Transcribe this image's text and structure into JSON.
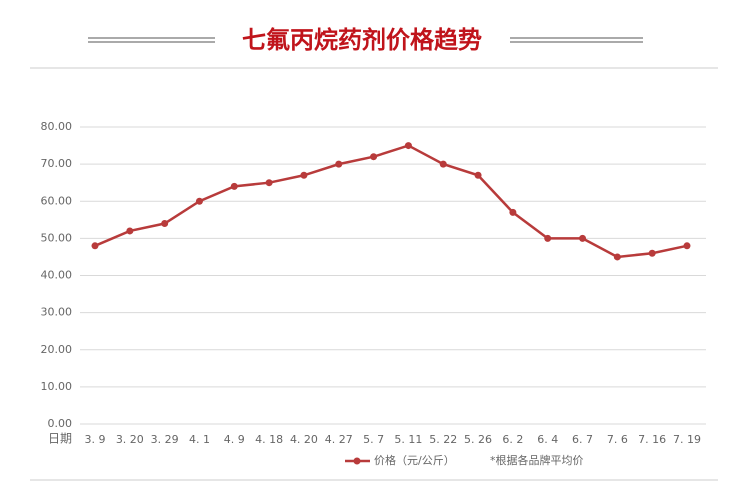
{
  "chart_data": {
    "type": "line",
    "title": "七氟丙烷药剂价格趋势",
    "x_label": "日期",
    "categories": [
      "3. 9",
      "3. 20",
      "3. 29",
      "4. 1",
      "4. 9",
      "4. 18",
      "4. 20",
      "4. 27",
      "5. 7",
      "5. 11",
      "5. 22",
      "5. 26",
      "6. 2",
      "6. 4",
      "6. 7",
      "7. 6",
      "7. 16",
      "7. 19"
    ],
    "series": [
      {
        "name": "价格（元/公斤）",
        "color": "#b83b3b",
        "values": [
          48,
          52,
          54,
          60,
          64,
          65,
          67,
          70,
          72,
          75,
          70,
          67,
          57,
          50,
          50,
          45,
          46,
          48
        ]
      }
    ],
    "note": "*根据各品牌平均价",
    "ylim": [
      0,
      80
    ],
    "yticks": [
      {
        "value": 0,
        "label": "0.00"
      },
      {
        "value": 10,
        "label": "10.00"
      },
      {
        "value": 20,
        "label": "20.00"
      },
      {
        "value": 30,
        "label": "30.00"
      },
      {
        "value": 40,
        "label": "40.00"
      },
      {
        "value": 50,
        "label": "50.00"
      },
      {
        "value": 60,
        "label": "60.00"
      },
      {
        "value": 70,
        "label": "70.00"
      },
      {
        "value": 80,
        "label": "80.00"
      }
    ],
    "grid": true
  }
}
